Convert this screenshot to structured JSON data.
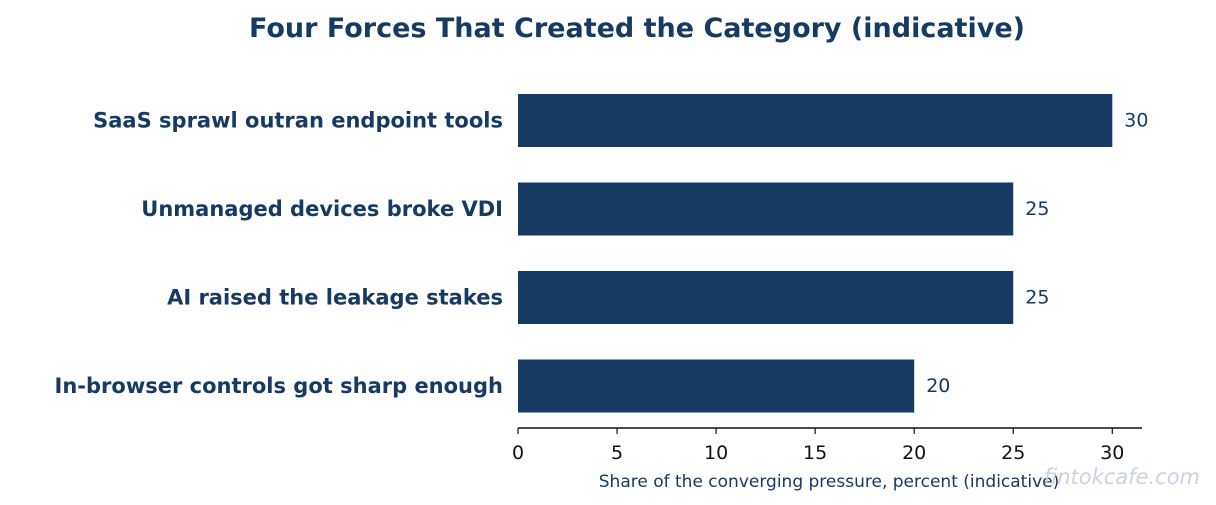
{
  "chart_data": {
    "type": "bar",
    "orientation": "horizontal",
    "title": "Four Forces That Created the Category (indicative)",
    "xlabel": "Share of the converging pressure, percent (indicative)",
    "ylabel": "",
    "categories": [
      "SaaS sprawl outran endpoint tools",
      "Unmanaged devices broke VDI",
      "AI raised the leakage stakes",
      "In-browser controls got sharp enough"
    ],
    "values": [
      30,
      25,
      25,
      20
    ],
    "value_labels": [
      "30",
      "25",
      "25",
      "20"
    ],
    "xlim": [
      0,
      31.5
    ],
    "xticks": [
      0,
      5,
      10,
      15,
      20,
      25,
      30
    ],
    "xtick_labels": [
      "0",
      "5",
      "10",
      "15",
      "20",
      "25",
      "30"
    ],
    "grid": false,
    "legend": "none",
    "bar_color": "#173a63",
    "text_color": "#173a63"
  },
  "watermark": "fintokcafe.com"
}
